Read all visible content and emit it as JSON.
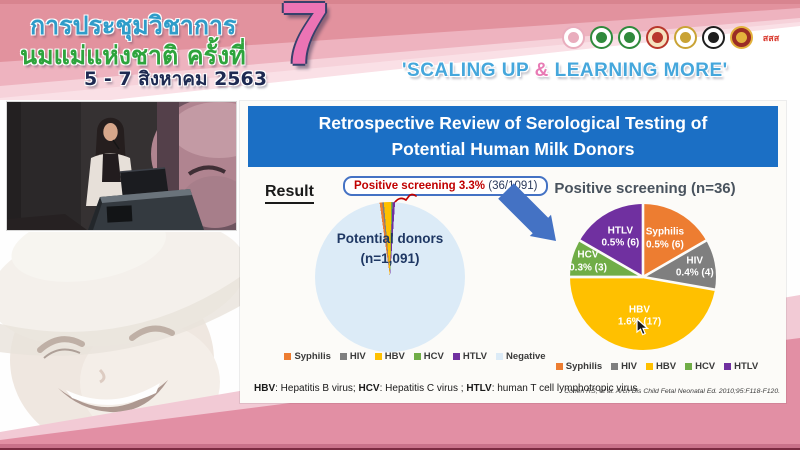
{
  "header": {
    "conference_title_line1": "การประชุมวิชาการ",
    "conference_title_line2": "นมแม่แห่งชาติ ครั้งที่",
    "date": "5 - 7 สิงหาคม 2563",
    "edition_number": "7",
    "slogan_prefix": "'SCALING UP ",
    "slogan_amp": "&",
    "slogan_suffix": " LEARNING MORE'",
    "logos": [
      {
        "name": "mother-child-foundation-logo",
        "fg": "#e9adbd",
        "bg": "#ffffff"
      },
      {
        "name": "green-health-association-logo",
        "fg": "#2f8a3c",
        "bg": "#ffffff"
      },
      {
        "name": "green-medical-association-logo",
        "fg": "#2f8a3c",
        "bg": "#ffffff"
      },
      {
        "name": "royal-college-emblem-logo",
        "fg": "#b8372c",
        "bg": "#f6e3c0"
      },
      {
        "name": "royal-institute-emblem-logo",
        "fg": "#c9a335",
        "bg": "#ffffff"
      },
      {
        "name": "medical-council-logo",
        "fg": "#1e1e1e",
        "bg": "#ffffff"
      },
      {
        "name": "royal-thai-college-logo",
        "fg": "#e3b23c",
        "bg": "#9a2c24"
      },
      {
        "name": "thai-health-sss-logo",
        "fg": "#d93a2f",
        "bg": "",
        "label": "สสส"
      }
    ]
  },
  "slide": {
    "title": "Retrospective Review of Serological Testing of Potential Human Milk Donors",
    "result_label": "Result",
    "callout_highlight": "Positive screening 3.3%",
    "callout_count": "(36/1091)",
    "footnote": {
      "abbr1": "HBV",
      "def1": ": Hepatitis B virus; ",
      "abbr2": "HCV",
      "def2": ": Hepatitis C virus ; ",
      "abbr3": "HTLV",
      "def3": ": human T cell lymphotropic virus"
    },
    "citation": "Cohen RS, et al. Arch Dis Child Fetal Neonatal Ed. 2010;95:F118-F120."
  },
  "colors": {
    "title_bar_blue": "#1b6fc5",
    "callout_red": "#c00000",
    "arrow_blue": "#4472c4",
    "header_pink": "#e2929e",
    "slogan_blue": "#45a7dc",
    "slogan_pink": "#e87bb5"
  },
  "chart_data": [
    {
      "type": "pie",
      "title": "",
      "center_label_line1": "Potential donors",
      "center_label_line2": "(n=1,091)",
      "start_angle_deg": -8,
      "legend_position": "bottom",
      "separators": false,
      "series": [
        {
          "name": "Syphilis",
          "value": 6,
          "color": "#ed7d31"
        },
        {
          "name": "HIV",
          "value": 4,
          "color": "#7f7f7f"
        },
        {
          "name": "HBV",
          "value": 17,
          "color": "#ffc000"
        },
        {
          "name": "HCV",
          "value": 3,
          "color": "#70ad47"
        },
        {
          "name": "HTLV",
          "value": 6,
          "color": "#7030a0"
        },
        {
          "name": "Negative",
          "value": 1055,
          "color": "#dcebf7"
        }
      ]
    },
    {
      "type": "pie",
      "title": "Positive screening (n=36)",
      "start_angle_deg": 0,
      "legend_position": "bottom",
      "separators": true,
      "series": [
        {
          "name": "Syphilis",
          "value": 6,
          "pct_label": "0.5% (6)",
          "color": "#ed7d31",
          "label_r": 0.6
        },
        {
          "name": "HIV",
          "value": 4,
          "pct_label": "0.4% (4)",
          "color": "#7f7f7f",
          "label_r": 0.72
        },
        {
          "name": "HBV",
          "value": 17,
          "pct_label": "1.6% (17)",
          "color": "#ffc000",
          "label_r": 0.55
        },
        {
          "name": "HCV",
          "value": 3,
          "pct_label": "0.3% (3)",
          "color": "#70ad47",
          "label_r": 0.78
        },
        {
          "name": "HTLV",
          "value": 6,
          "pct_label": "0.5% (6)",
          "color": "#7030a0",
          "label_r": 0.62
        }
      ]
    }
  ]
}
